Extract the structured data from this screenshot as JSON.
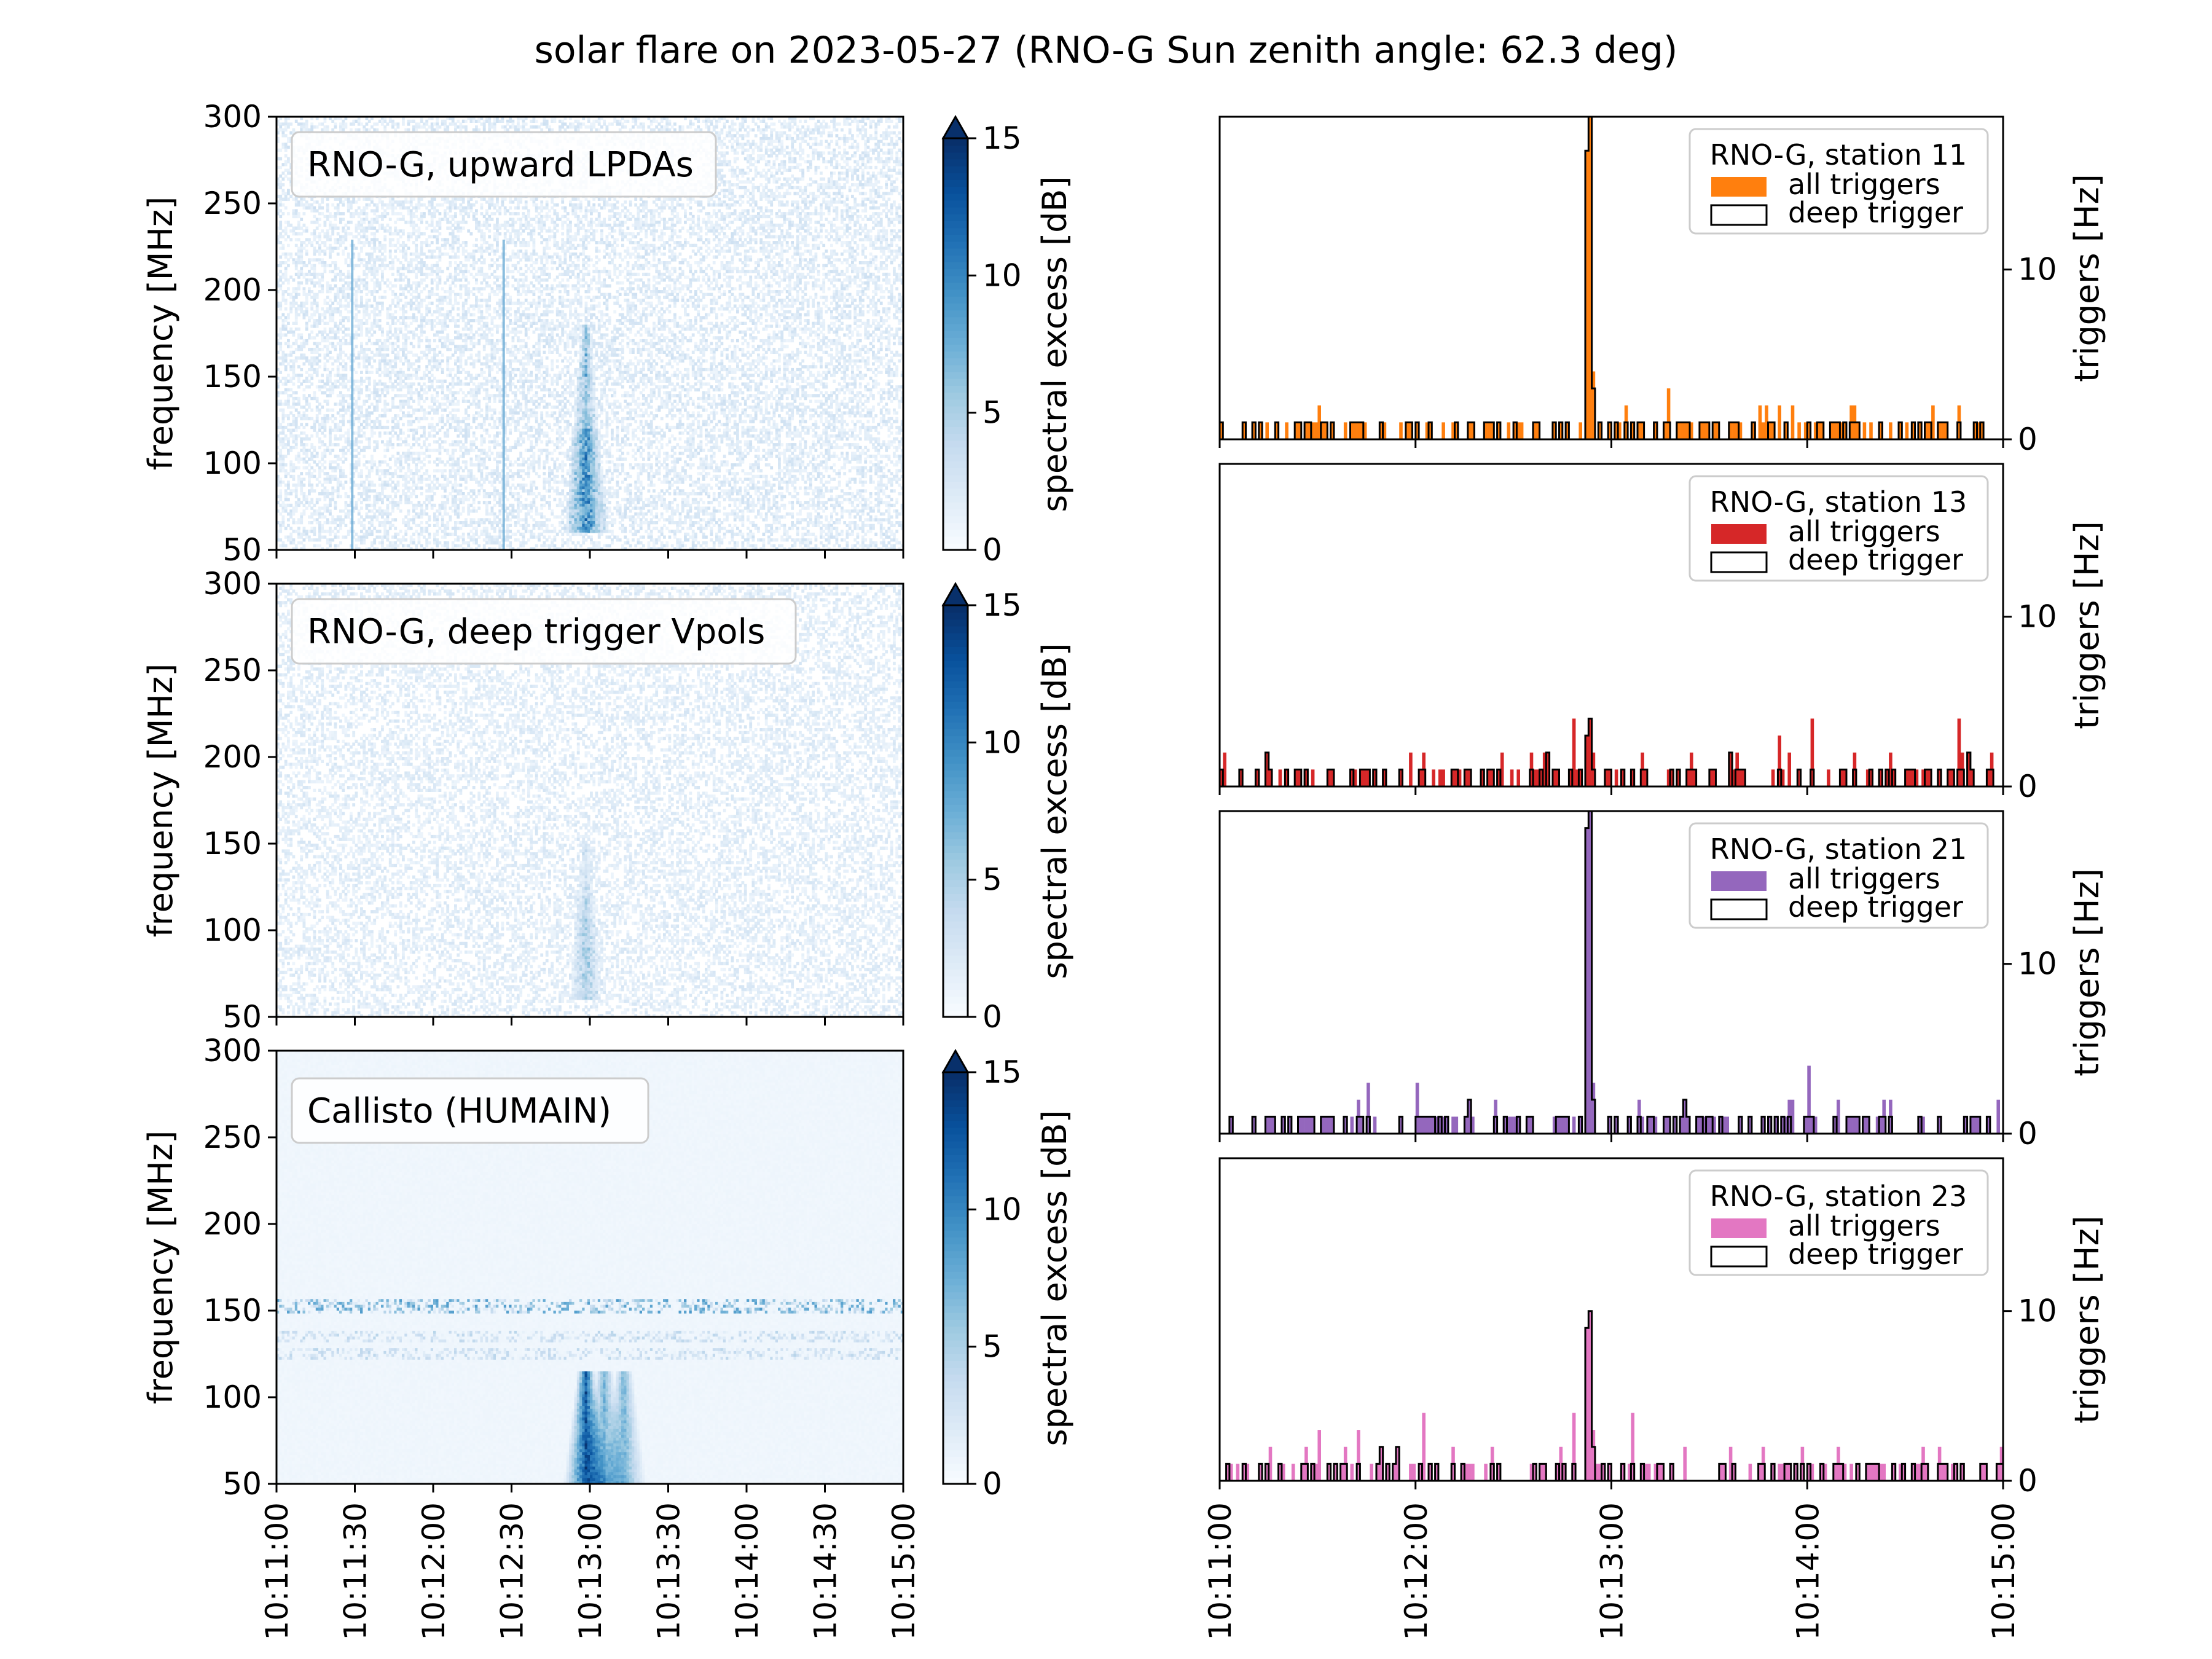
{
  "title": "solar flare on 2023-05-27 (RNO-G Sun zenith angle: 62.3 deg)",
  "colors": {
    "station11": "#ff7f0e",
    "station13": "#d62728",
    "station21": "#9467bd",
    "station23": "#e377c2",
    "cmap_low": "#f7fbff",
    "cmap_high": "#08306b"
  },
  "chart_data": [
    {
      "type": "heatmap",
      "label": "RNO-G, upward LPDAs",
      "ylabel": "frequency [MHz]",
      "ylim": [
        50,
        300
      ],
      "yticks": [
        "50",
        "100",
        "150",
        "200",
        "250",
        "300"
      ],
      "colorbar_label": "spectral excess [dB]",
      "colorbar_ticks": [
        "0",
        "5",
        "10",
        "15"
      ],
      "clim": [
        0,
        15
      ],
      "noise": 0.13,
      "burst": {
        "time": "10:12:58",
        "freq_range": [
          60,
          180
        ],
        "peak_db": 11
      },
      "vlines": [
        "10:11:29",
        "10:12:27"
      ]
    },
    {
      "type": "heatmap",
      "label": "RNO-G, deep trigger Vpols",
      "ylabel": "frequency [MHz]",
      "ylim": [
        50,
        300
      ],
      "yticks": [
        "50",
        "100",
        "150",
        "200",
        "250",
        "300"
      ],
      "colorbar_label": "spectral excess [dB]",
      "colorbar_ticks": [
        "0",
        "5",
        "10",
        "15"
      ],
      "clim": [
        0,
        15
      ],
      "noise": 0.11,
      "burst": {
        "time": "10:12:58",
        "freq_range": [
          60,
          150
        ],
        "peak_db": 5
      },
      "vlines": []
    },
    {
      "type": "heatmap",
      "label": "Callisto (HUMAIN)",
      "ylabel": "frequency [MHz]",
      "ylim": [
        50,
        300
      ],
      "yticks": [
        "50",
        "100",
        "150",
        "200",
        "250",
        "300"
      ],
      "colorbar_label": "spectral excess [dB]",
      "colorbar_ticks": [
        "0",
        "5",
        "10",
        "15"
      ],
      "clim": [
        0,
        15
      ],
      "bands": [
        152,
        135,
        125
      ],
      "burst": {
        "time": "10:12:58",
        "freq_range": [
          50,
          115
        ],
        "peak_db": 14
      },
      "xticks": [
        "10:11:00",
        "10:11:30",
        "10:12:00",
        "10:12:30",
        "10:13:00",
        "10:13:30",
        "10:14:00",
        "10:14:30",
        "10:15:00"
      ]
    },
    {
      "type": "bar",
      "legend_title": "RNO-G, station 11",
      "legend": [
        "all triggers",
        "deep trigger"
      ],
      "ylabel": "triggers [Hz]",
      "yticks": [
        "0",
        "10"
      ],
      "ylim": [
        0,
        19
      ],
      "peak": [
        17,
        19,
        4
      ],
      "peak_time": "10:12:53",
      "seed": 11
    },
    {
      "type": "bar",
      "legend_title": "RNO-G, station 13",
      "legend": [
        "all triggers",
        "deep trigger"
      ],
      "ylabel": "triggers [Hz]",
      "yticks": [
        "0",
        "10"
      ],
      "ylim": [
        0,
        19
      ],
      "peak": [
        3,
        4,
        2
      ],
      "peak_time": "10:12:53",
      "seed": 13
    },
    {
      "type": "bar",
      "legend_title": "RNO-G, station 21",
      "legend": [
        "all triggers",
        "deep trigger"
      ],
      "ylabel": "triggers [Hz]",
      "yticks": [
        "0",
        "10"
      ],
      "ylim": [
        0,
        19
      ],
      "peak": [
        18,
        19,
        3
      ],
      "peak_time": "10:12:53",
      "seed": 21
    },
    {
      "type": "bar",
      "legend_title": "RNO-G, station 23",
      "legend": [
        "all triggers",
        "deep trigger"
      ],
      "ylabel": "triggers [Hz]",
      "yticks": [
        "0",
        "10"
      ],
      "ylim": [
        0,
        19
      ],
      "peak": [
        9,
        10,
        3
      ],
      "peak_time": "10:12:53",
      "seed": 23
    }
  ],
  "right_xticks": [
    "10:11:00",
    "10:12:00",
    "10:13:00",
    "10:14:00",
    "10:15:00"
  ]
}
